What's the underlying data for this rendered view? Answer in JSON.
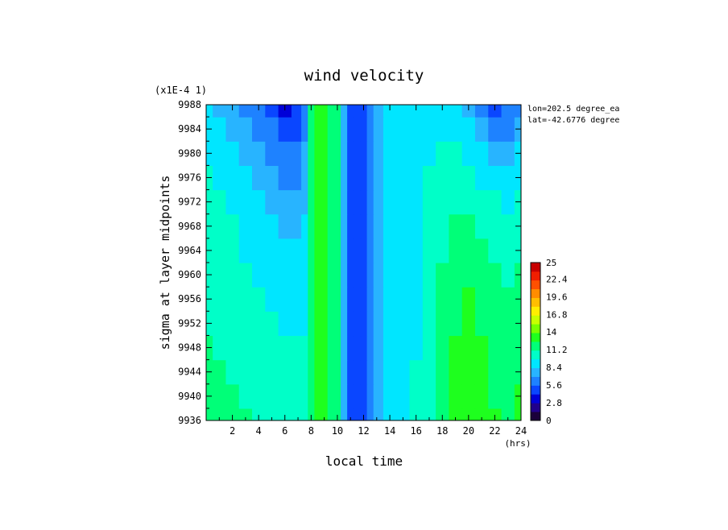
{
  "chart_data": {
    "type": "heatmap",
    "title": "wind velocity",
    "xlabel": "local time",
    "ylabel": "sigma at layer midpoints",
    "x_unit": "(hrs)",
    "y_scale_note": "(x1E-4 1)",
    "annotations": [
      "lon=202.5 degree_ea",
      "lat=-42.6776 degree"
    ],
    "xlim": [
      0,
      24
    ],
    "ylim": [
      9988,
      9936
    ],
    "x_ticks": [
      2,
      4,
      6,
      8,
      10,
      12,
      14,
      16,
      18,
      20,
      22,
      24
    ],
    "y_ticks": [
      9936,
      9940,
      9944,
      9948,
      9952,
      9956,
      9960,
      9964,
      9968,
      9972,
      9976,
      9980,
      9984,
      9988
    ],
    "x": [
      0,
      1,
      2,
      3,
      4,
      5,
      6,
      7,
      7.5,
      8,
      8.5,
      9,
      9.5,
      10,
      10.5,
      11,
      11.5,
      12,
      12.5,
      13,
      14,
      15,
      16,
      17,
      18,
      19,
      20,
      21,
      22,
      23,
      24
    ],
    "y": [
      9936,
      9940,
      9944,
      9948,
      9952,
      9956,
      9960,
      9964,
      9968,
      9972,
      9976,
      9980,
      9984,
      9988
    ],
    "z_rows": [
      [
        11.8,
        11.6,
        11.4,
        11.2,
        11.0,
        10.8,
        10.5,
        10.2,
        10.0,
        12.0,
        12.6,
        12.8,
        12.4,
        11.6,
        8.2,
        5.5,
        4.2,
        4.4,
        6.6,
        8.2,
        8.6,
        9.0,
        9.8,
        11.0,
        12.4,
        13.2,
        13.6,
        13.2,
        12.6,
        12.4,
        12.8
      ],
      [
        11.6,
        11.4,
        11.2,
        11.0,
        10.8,
        10.6,
        10.3,
        10.1,
        10.0,
        12.0,
        12.6,
        12.8,
        12.4,
        11.6,
        8.2,
        5.5,
        4.2,
        4.4,
        6.6,
        8.2,
        8.6,
        9.0,
        9.8,
        11.0,
        12.2,
        13.0,
        13.4,
        13.0,
        12.4,
        12.2,
        12.6
      ],
      [
        11.4,
        11.2,
        11.0,
        10.8,
        10.6,
        10.4,
        10.1,
        10.0,
        9.9,
        12.0,
        12.6,
        12.8,
        12.4,
        11.6,
        8.2,
        5.5,
        4.2,
        4.4,
        6.6,
        8.2,
        8.6,
        9.0,
        9.8,
        10.9,
        12.0,
        12.8,
        13.2,
        12.8,
        12.2,
        12.0,
        12.4
      ],
      [
        11.2,
        11.0,
        10.8,
        10.6,
        10.4,
        10.1,
        9.8,
        9.8,
        9.8,
        12.0,
        12.6,
        12.8,
        12.4,
        11.6,
        8.2,
        5.5,
        4.2,
        4.4,
        6.6,
        8.2,
        8.6,
        9.0,
        9.7,
        10.8,
        11.8,
        12.6,
        13.0,
        12.6,
        12.0,
        11.8,
        12.2
      ],
      [
        11.0,
        10.8,
        10.6,
        10.4,
        10.2,
        9.9,
        9.6,
        9.6,
        9.7,
        12.0,
        12.6,
        12.8,
        12.4,
        11.6,
        8.2,
        5.5,
        4.2,
        4.4,
        6.6,
        8.2,
        8.6,
        9.0,
        9.7,
        10.7,
        11.6,
        12.4,
        12.8,
        12.4,
        11.8,
        11.6,
        12.0
      ],
      [
        10.8,
        10.6,
        10.4,
        10.2,
        10.0,
        9.6,
        9.3,
        9.3,
        9.5,
        12.0,
        12.6,
        12.8,
        12.4,
        11.6,
        8.2,
        5.5,
        4.2,
        4.4,
        6.6,
        8.2,
        8.6,
        9.0,
        9.6,
        10.6,
        11.4,
        12.2,
        12.6,
        12.2,
        11.6,
        11.4,
        11.8
      ],
      [
        10.6,
        10.4,
        10.2,
        10.0,
        9.7,
        9.3,
        9.0,
        9.0,
        9.3,
        12.0,
        12.6,
        12.8,
        12.4,
        11.6,
        8.2,
        5.5,
        4.2,
        4.4,
        6.6,
        8.2,
        8.6,
        9.0,
        9.6,
        10.5,
        11.2,
        11.9,
        12.2,
        11.8,
        11.2,
        11.0,
        11.4
      ],
      [
        10.4,
        10.2,
        10.0,
        9.7,
        9.4,
        8.9,
        8.5,
        8.6,
        9.0,
        12.0,
        12.6,
        12.8,
        12.4,
        11.6,
        8.2,
        5.5,
        4.2,
        4.4,
        6.6,
        8.2,
        8.6,
        9.0,
        9.5,
        10.4,
        11.0,
        11.6,
        11.8,
        11.4,
        10.8,
        10.6,
        11.0
      ],
      [
        10.2,
        10.0,
        9.8,
        9.4,
        9.0,
        8.4,
        8.0,
        8.1,
        8.6,
        12.0,
        12.6,
        12.8,
        12.4,
        11.6,
        8.2,
        5.5,
        4.2,
        4.4,
        6.6,
        8.2,
        8.6,
        9.0,
        9.5,
        10.3,
        10.8,
        11.3,
        11.4,
        11.0,
        10.4,
        10.2,
        10.6
      ],
      [
        10.0,
        9.8,
        9.5,
        9.1,
        8.6,
        7.9,
        7.4,
        7.5,
        8.2,
        12.0,
        12.6,
        12.8,
        12.4,
        11.6,
        8.2,
        5.5,
        4.2,
        4.4,
        6.6,
        8.2,
        8.6,
        9.0,
        9.4,
        10.1,
        10.5,
        10.9,
        10.9,
        10.4,
        9.8,
        9.6,
        10.0
      ],
      [
        9.8,
        9.5,
        9.2,
        8.7,
        8.1,
        7.3,
        6.7,
        6.8,
        7.7,
        12.0,
        12.6,
        12.8,
        12.4,
        11.6,
        8.2,
        5.5,
        4.2,
        4.4,
        6.6,
        8.2,
        8.6,
        9.0,
        9.3,
        9.9,
        10.2,
        10.4,
        10.2,
        9.6,
        9.0,
        8.8,
        9.2
      ],
      [
        9.5,
        9.2,
        8.8,
        8.2,
        7.5,
        6.6,
        5.9,
        6.0,
        7.2,
        12.0,
        12.6,
        12.8,
        12.4,
        11.6,
        8.2,
        5.5,
        4.2,
        4.4,
        6.6,
        8.2,
        8.6,
        9.0,
        9.2,
        9.6,
        9.8,
        9.8,
        9.4,
        8.6,
        7.8,
        7.8,
        8.4
      ],
      [
        9.2,
        8.8,
        8.3,
        7.6,
        6.8,
        5.8,
        5.0,
        5.1,
        6.6,
        12.0,
        12.6,
        12.8,
        12.4,
        11.6,
        8.2,
        5.5,
        4.2,
        4.4,
        6.6,
        8.2,
        8.6,
        9.0,
        9.1,
        9.3,
        9.3,
        9.2,
        8.6,
        7.6,
        6.6,
        6.6,
        7.4
      ],
      [
        8.8,
        8.3,
        7.7,
        6.9,
        6.0,
        4.8,
        4.0,
        4.2,
        6.0,
        12.0,
        12.6,
        12.8,
        12.4,
        11.6,
        8.2,
        5.5,
        4.2,
        4.4,
        6.6,
        8.2,
        8.6,
        9.0,
        9.0,
        9.0,
        8.8,
        8.6,
        7.8,
        6.6,
        5.4,
        5.6,
        6.4
      ]
    ],
    "colorbar": {
      "min": 0,
      "max": 25,
      "tick_labels": [
        "0",
        "2.8",
        "5.6",
        "8.4",
        "11.2",
        "14",
        "16.8",
        "19.6",
        "22.4",
        "25"
      ],
      "palette": [
        "#1a003a",
        "#20008c",
        "#0000d8",
        "#0a46ff",
        "#1e82ff",
        "#28b4ff",
        "#00e6ff",
        "#00ffc8",
        "#00ff78",
        "#1eff1e",
        "#78ff00",
        "#c8ff00",
        "#ffee00",
        "#ffbe00",
        "#ff8c00",
        "#ff5000",
        "#f01e00",
        "#c80000"
      ]
    }
  }
}
